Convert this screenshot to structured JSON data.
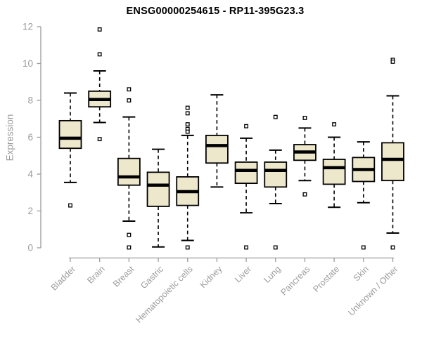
{
  "chart_data": {
    "type": "boxplot",
    "title": "ENSG00000254615 - RP11-395G23.3",
    "ylabel": "Expression",
    "xlabel": "",
    "ylim": [
      0,
      12
    ],
    "yticks": [
      0,
      2,
      4,
      6,
      8,
      10,
      12
    ],
    "grid": false,
    "legend": null,
    "categories": [
      "Bladder",
      "Brain",
      "Breast",
      "Gastric",
      "Hematopoietic cells",
      "Kidney",
      "Liver",
      "Lung",
      "Pancreas",
      "Prostate",
      "Skin",
      "Unknown / Other"
    ],
    "series": [
      {
        "name": "Bladder",
        "whisker_low": 3.55,
        "q1": 5.4,
        "median": 5.95,
        "q3": 6.9,
        "whisker_high": 8.4,
        "outliers": [
          2.3
        ]
      },
      {
        "name": "Brain",
        "whisker_low": 6.8,
        "q1": 7.65,
        "median": 8.05,
        "q3": 8.5,
        "whisker_high": 9.6,
        "outliers": [
          11.85,
          10.5,
          5.9
        ]
      },
      {
        "name": "Breast",
        "whisker_low": 1.45,
        "q1": 3.4,
        "median": 3.85,
        "q3": 4.85,
        "whisker_high": 7.1,
        "outliers": [
          8.6,
          8.0,
          0.7,
          0.02
        ]
      },
      {
        "name": "Gastric",
        "whisker_low": 0.05,
        "q1": 2.25,
        "median": 3.4,
        "q3": 4.1,
        "whisker_high": 5.35,
        "outliers": []
      },
      {
        "name": "Hematopoietic cells",
        "whisker_low": 0.4,
        "q1": 2.3,
        "median": 3.05,
        "q3": 3.85,
        "whisker_high": 6.1,
        "outliers": [
          7.6,
          7.3,
          6.7,
          6.45,
          6.3,
          0.02
        ]
      },
      {
        "name": "Kidney",
        "whisker_low": 3.3,
        "q1": 4.6,
        "median": 5.55,
        "q3": 6.1,
        "whisker_high": 8.3,
        "outliers": []
      },
      {
        "name": "Liver",
        "whisker_low": 1.9,
        "q1": 3.5,
        "median": 4.2,
        "q3": 4.65,
        "whisker_high": 5.95,
        "outliers": [
          6.6,
          0.02
        ]
      },
      {
        "name": "Lung",
        "whisker_low": 2.4,
        "q1": 3.3,
        "median": 4.2,
        "q3": 4.65,
        "whisker_high": 5.3,
        "outliers": [
          7.1,
          0.02
        ]
      },
      {
        "name": "Pancreas",
        "whisker_low": 3.65,
        "q1": 4.75,
        "median": 5.2,
        "q3": 5.6,
        "whisker_high": 6.5,
        "outliers": [
          7.05,
          2.9
        ]
      },
      {
        "name": "Prostate",
        "whisker_low": 2.2,
        "q1": 3.45,
        "median": 4.35,
        "q3": 4.8,
        "whisker_high": 6.0,
        "outliers": [
          6.7
        ]
      },
      {
        "name": "Skin",
        "whisker_low": 2.45,
        "q1": 3.6,
        "median": 4.25,
        "q3": 4.9,
        "whisker_high": 5.75,
        "outliers": [
          0.02
        ]
      },
      {
        "name": "Unknown / Other",
        "whisker_low": 0.8,
        "q1": 3.65,
        "median": 4.8,
        "q3": 5.7,
        "whisker_high": 8.25,
        "outliers": [
          10.2,
          10.1,
          0.02
        ]
      }
    ]
  },
  "styles": {
    "background": "#ffffff",
    "box_fill": "#ede7cc",
    "box_stroke": "#000000",
    "median_color": "#000000",
    "whisker_color": "#000000",
    "outlier_fill": "#ffffff",
    "outlier_stroke": "#000000",
    "axis_color": "#9c9c9c",
    "tick_label_color": "#9c9c9c",
    "title_color": "#000000"
  }
}
